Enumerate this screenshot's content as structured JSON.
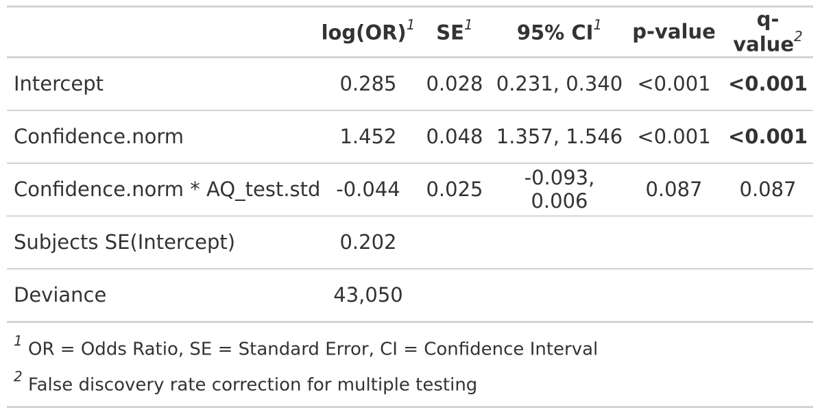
{
  "table": {
    "headers": [
      {
        "label": "",
        "sup": ""
      },
      {
        "label": "log(OR)",
        "sup": "1"
      },
      {
        "label": "SE",
        "sup": "1"
      },
      {
        "label": "95% CI",
        "sup": "1"
      },
      {
        "label": "p-value",
        "sup": ""
      },
      {
        "label": "q-value",
        "sup": "2"
      }
    ],
    "rows": [
      {
        "term": "Intercept",
        "log_or": "0.285",
        "se": "0.028",
        "ci": "0.231, 0.340",
        "p": "<0.001",
        "q": "<0.001",
        "q_bold": true
      },
      {
        "term": "Confidence.norm",
        "log_or": "1.452",
        "se": "0.048",
        "ci": "1.357, 1.546",
        "p": "<0.001",
        "q": "<0.001",
        "q_bold": true
      },
      {
        "term": "Confidence.norm * AQ_test.std",
        "log_or": "-0.044",
        "se": "0.025",
        "ci": "-0.093, 0.006",
        "p": "0.087",
        "q": "0.087",
        "q_bold": false
      },
      {
        "term": "Subjects SE(Intercept)",
        "log_or": "0.202",
        "se": "",
        "ci": "",
        "p": "",
        "q": "",
        "q_bold": false
      },
      {
        "term": "Deviance",
        "log_or": "43,050",
        "se": "",
        "ci": "",
        "p": "",
        "q": "",
        "q_bold": false
      }
    ]
  },
  "footnotes": [
    {
      "mark": "1",
      "text": "OR = Odds Ratio, SE = Standard Error, CI = Confidence Interval"
    },
    {
      "mark": "2",
      "text": "False discovery rate correction for multiple testing"
    }
  ]
}
